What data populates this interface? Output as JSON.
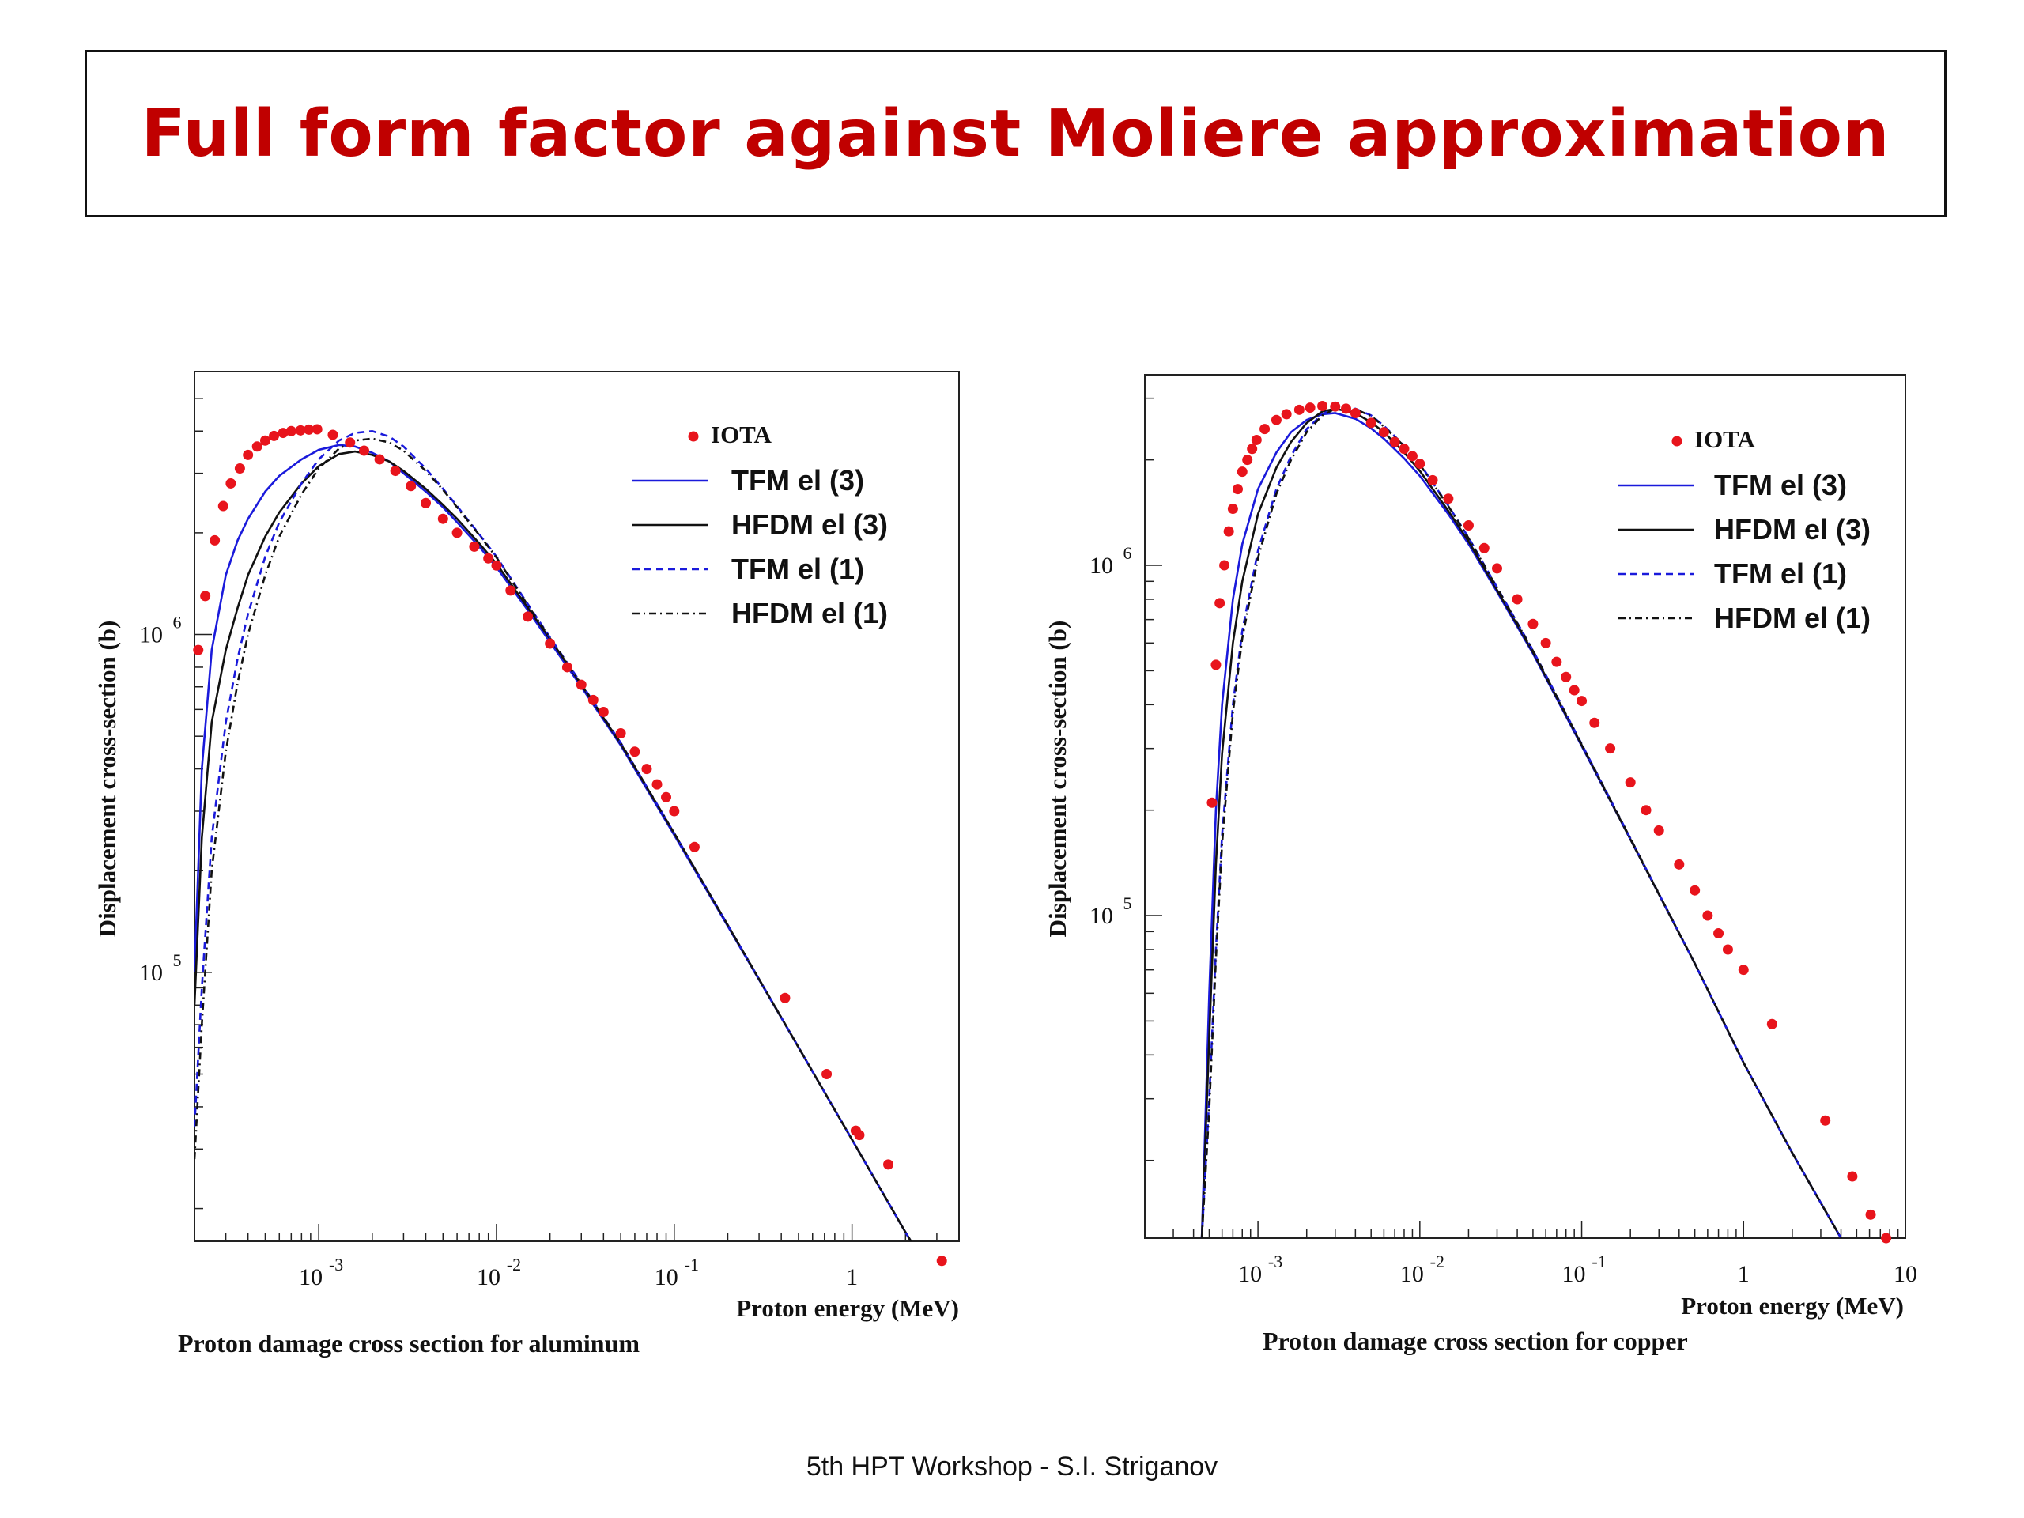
{
  "slide": {
    "title": "Full form factor against Moliere approximation",
    "title_color": "#c00000",
    "footer": "5th HPT Workshop  -  S.I. Striganov"
  },
  "chart_data": [
    {
      "type": "line",
      "caption": "Proton damage cross section for aluminum",
      "xlabel": "Proton energy (MeV)",
      "ylabel": "Displacement cross-section (b)",
      "xscale": "log",
      "yscale": "log",
      "xlim": [
        0.0002,
        4
      ],
      "ylim": [
        16000,
        6000000
      ],
      "x_ticks": [
        {
          "base": "10",
          "exp": "-3",
          "value": 0.001
        },
        {
          "base": "10",
          "exp": "-2",
          "value": 0.01
        },
        {
          "base": "10",
          "exp": "-1",
          "value": 0.1
        },
        {
          "base": "1",
          "exp": "",
          "value": 1
        }
      ],
      "y_ticks": [
        {
          "base": "10",
          "exp": "6",
          "value": 1000000
        },
        {
          "base": "10",
          "exp": "5",
          "value": 100000
        }
      ],
      "legend": {
        "placement": "top-right",
        "entries": [
          "IOTA",
          "TFM el (3)",
          "HFDM el (3)",
          "TFM el (1)",
          "HFDM el (1)"
        ]
      },
      "iota": {
        "name": "IOTA",
        "x": [
          0.00021,
          0.00023,
          0.00026,
          0.00029,
          0.00032,
          0.00036,
          0.0004,
          0.00045,
          0.0005,
          0.00056,
          0.00063,
          0.0007,
          0.00079,
          0.00088,
          0.00098,
          0.0012,
          0.0015,
          0.0018,
          0.0022,
          0.0027,
          0.0033,
          0.004,
          0.005,
          0.006,
          0.0075,
          0.009,
          0.01,
          0.012,
          0.015,
          0.02,
          0.025,
          0.03,
          0.035,
          0.04,
          0.05,
          0.06,
          0.07,
          0.08,
          0.09,
          0.1,
          0.13,
          0.42,
          0.72,
          1.05,
          1.1,
          1.6,
          3.2
        ],
        "y": [
          900000,
          1300000,
          1900000,
          2400000,
          2800000,
          3100000,
          3400000,
          3600000,
          3750000,
          3870000,
          3950000,
          4000000,
          4020000,
          4040000,
          4050000,
          3900000,
          3700000,
          3500000,
          3300000,
          3050000,
          2750000,
          2450000,
          2200000,
          2000000,
          1820000,
          1680000,
          1600000,
          1350000,
          1130000,
          940000,
          800000,
          710000,
          640000,
          590000,
          510000,
          450000,
          400000,
          360000,
          330000,
          300000,
          235000,
          84000,
          50000,
          34000,
          33000,
          27000,
          14000
        ]
      },
      "series": [
        {
          "name": "TFM el (3)",
          "color": "#1a1adb",
          "dash": "solid",
          "x": [
            0.0002,
            0.00022,
            0.00025,
            0.0003,
            0.00035,
            0.0004,
            0.0005,
            0.0006,
            0.0008,
            0.001,
            0.0013,
            0.0016,
            0.002,
            0.0025,
            0.003,
            0.004,
            0.005,
            0.006,
            0.008,
            0.01,
            0.015,
            0.02,
            0.03,
            0.05,
            0.1,
            0.2,
            0.5,
            1,
            2,
            3.5
          ],
          "y": [
            100000,
            400000,
            900000,
            1500000,
            1900000,
            2200000,
            2650000,
            2950000,
            3300000,
            3520000,
            3640000,
            3600000,
            3450000,
            3250000,
            3000000,
            2650000,
            2380000,
            2150000,
            1820000,
            1580000,
            1180000,
            950000,
            700000,
            470000,
            255000,
            137000,
            60000,
            32000,
            17000,
            10500
          ]
        },
        {
          "name": "HFDM el (3)",
          "color": "#111111",
          "dash": "solid",
          "x": [
            0.0002,
            0.00022,
            0.00025,
            0.0003,
            0.00035,
            0.0004,
            0.0005,
            0.0006,
            0.0008,
            0.001,
            0.0013,
            0.0016,
            0.002,
            0.0025,
            0.003,
            0.004,
            0.005,
            0.006,
            0.008,
            0.01,
            0.015,
            0.02,
            0.03,
            0.05,
            0.1,
            0.2,
            0.5,
            1,
            2,
            3.5
          ],
          "y": [
            80000,
            250000,
            550000,
            900000,
            1200000,
            1500000,
            1950000,
            2300000,
            2800000,
            3150000,
            3420000,
            3480000,
            3400000,
            3250000,
            3050000,
            2700000,
            2420000,
            2200000,
            1860000,
            1620000,
            1200000,
            970000,
            710000,
            475000,
            258000,
            138000,
            60000,
            32000,
            17000,
            10500
          ]
        },
        {
          "name": "TFM el (1)",
          "color": "#1a1adb",
          "dash": "dashed",
          "x": [
            0.0002,
            0.00022,
            0.00025,
            0.0003,
            0.00035,
            0.0004,
            0.0005,
            0.0006,
            0.0008,
            0.001,
            0.0013,
            0.0016,
            0.002,
            0.0025,
            0.003,
            0.004,
            0.005,
            0.006,
            0.008,
            0.01,
            0.015,
            0.02,
            0.03,
            0.05,
            0.1,
            0.2,
            0.5,
            1,
            2,
            3.5
          ],
          "y": [
            35000,
            90000,
            250000,
            550000,
            850000,
            1150000,
            1700000,
            2150000,
            2800000,
            3300000,
            3750000,
            3950000,
            4000000,
            3850000,
            3600000,
            3100000,
            2700000,
            2400000,
            1980000,
            1700000,
            1230000,
            980000,
            715000,
            478000,
            258000,
            138000,
            60000,
            32000,
            17000,
            10500
          ]
        },
        {
          "name": "HFDM el (1)",
          "color": "#111111",
          "dash": "dashdot",
          "x": [
            0.0002,
            0.00022,
            0.00025,
            0.0003,
            0.00035,
            0.0004,
            0.0005,
            0.0006,
            0.0008,
            0.001,
            0.0013,
            0.0016,
            0.002,
            0.0025,
            0.003,
            0.004,
            0.005,
            0.006,
            0.008,
            0.01,
            0.015,
            0.02,
            0.03,
            0.05,
            0.1,
            0.2,
            0.5,
            1,
            2,
            3.5
          ],
          "y": [
            28000,
            70000,
            200000,
            450000,
            720000,
            1000000,
            1500000,
            1950000,
            2600000,
            3100000,
            3550000,
            3750000,
            3800000,
            3700000,
            3500000,
            3050000,
            2680000,
            2380000,
            1970000,
            1690000,
            1220000,
            975000,
            712000,
            477000,
            258000,
            138000,
            60000,
            32000,
            17000,
            10500
          ]
        }
      ]
    },
    {
      "type": "line",
      "caption": "Proton damage cross section for copper",
      "xlabel": "Proton energy (MeV)",
      "ylabel": "Displacement cross-section (b)",
      "xscale": "log",
      "yscale": "log",
      "xlim": [
        0.0002,
        10
      ],
      "ylim": [
        12000,
        3500000
      ],
      "x_ticks": [
        {
          "base": "10",
          "exp": "-3",
          "value": 0.001
        },
        {
          "base": "10",
          "exp": "-2",
          "value": 0.01
        },
        {
          "base": "10",
          "exp": "-1",
          "value": 0.1
        },
        {
          "base": "1",
          "exp": "",
          "value": 1
        },
        {
          "base": "10",
          "exp": "",
          "value": 10
        }
      ],
      "y_ticks": [
        {
          "base": "10",
          "exp": "6",
          "value": 1000000
        },
        {
          "base": "10",
          "exp": "5",
          "value": 100000
        }
      ],
      "legend": {
        "placement": "top-right",
        "entries": [
          "IOTA",
          "TFM el (3)",
          "HFDM el (3)",
          "TFM el (1)",
          "HFDM el (1)"
        ]
      },
      "iota": {
        "name": "IOTA",
        "x": [
          0.00052,
          0.00055,
          0.00058,
          0.00062,
          0.00066,
          0.0007,
          0.00075,
          0.0008,
          0.00086,
          0.00092,
          0.00098,
          0.0011,
          0.0013,
          0.0015,
          0.0018,
          0.0021,
          0.0025,
          0.003,
          0.0035,
          0.004,
          0.005,
          0.006,
          0.007,
          0.008,
          0.009,
          0.01,
          0.012,
          0.015,
          0.02,
          0.025,
          0.03,
          0.04,
          0.05,
          0.06,
          0.07,
          0.08,
          0.09,
          0.1,
          0.12,
          0.15,
          0.2,
          0.25,
          0.3,
          0.4,
          0.5,
          0.6,
          0.7,
          0.8,
          1.0,
          1.5,
          3.2,
          4.7,
          6.1,
          7.6
        ],
        "y": [
          210000,
          520000,
          780000,
          1000000,
          1250000,
          1450000,
          1650000,
          1850000,
          2000000,
          2150000,
          2280000,
          2450000,
          2600000,
          2700000,
          2780000,
          2820000,
          2850000,
          2840000,
          2800000,
          2720000,
          2550000,
          2400000,
          2250000,
          2150000,
          2050000,
          1950000,
          1750000,
          1550000,
          1300000,
          1120000,
          980000,
          800000,
          680000,
          600000,
          530000,
          480000,
          440000,
          410000,
          355000,
          300000,
          240000,
          200000,
          175000,
          140000,
          118000,
          100000,
          89000,
          80000,
          70000,
          49000,
          26000,
          18000,
          14000,
          12000
        ]
      },
      "series": [
        {
          "name": "TFM el (3)",
          "color": "#1a1adb",
          "dash": "solid",
          "x": [
            0.00045,
            0.0005,
            0.00055,
            0.0006,
            0.0007,
            0.0008,
            0.001,
            0.0013,
            0.0016,
            0.002,
            0.0025,
            0.003,
            0.004,
            0.005,
            0.006,
            0.008,
            0.01,
            0.015,
            0.02,
            0.03,
            0.05,
            0.1,
            0.2,
            0.5,
            1,
            2,
            4,
            7
          ],
          "y": [
            12000,
            60000,
            200000,
            400000,
            800000,
            1150000,
            1650000,
            2100000,
            2400000,
            2600000,
            2700000,
            2720000,
            2620000,
            2460000,
            2300000,
            2020000,
            1800000,
            1400000,
            1150000,
            840000,
            560000,
            305000,
            165000,
            73000,
            38000,
            21000,
            12000,
            7800
          ]
        },
        {
          "name": "HFDM el (3)",
          "color": "#111111",
          "dash": "solid",
          "x": [
            0.00045,
            0.0005,
            0.00055,
            0.0006,
            0.0007,
            0.0008,
            0.001,
            0.0013,
            0.0016,
            0.002,
            0.0025,
            0.003,
            0.004,
            0.005,
            0.006,
            0.008,
            0.01,
            0.015,
            0.02,
            0.03,
            0.05,
            0.1,
            0.2,
            0.5,
            1,
            2,
            4,
            7
          ],
          "y": [
            12000,
            45000,
            140000,
            290000,
            600000,
            900000,
            1400000,
            1900000,
            2250000,
            2550000,
            2750000,
            2800000,
            2720000,
            2560000,
            2400000,
            2100000,
            1860000,
            1430000,
            1170000,
            850000,
            565000,
            307000,
            165000,
            73000,
            38000,
            21000,
            12000,
            7800
          ]
        },
        {
          "name": "TFM el (1)",
          "color": "#1a1adb",
          "dash": "dashed",
          "x": [
            0.00045,
            0.0005,
            0.00055,
            0.0006,
            0.0007,
            0.0008,
            0.001,
            0.0013,
            0.0016,
            0.002,
            0.0025,
            0.003,
            0.004,
            0.005,
            0.006,
            0.008,
            0.01,
            0.015,
            0.02,
            0.03,
            0.05,
            0.1,
            0.2,
            0.5,
            1,
            2,
            4,
            7
          ],
          "y": [
            12000,
            30000,
            80000,
            170000,
            400000,
            650000,
            1100000,
            1650000,
            2050000,
            2450000,
            2700000,
            2820000,
            2800000,
            2680000,
            2500000,
            2200000,
            1950000,
            1480000,
            1200000,
            865000,
            572000,
            309000,
            166000,
            73000,
            38000,
            21000,
            12000,
            7800
          ]
        },
        {
          "name": "HFDM el (1)",
          "color": "#111111",
          "dash": "dashdot",
          "x": [
            0.00045,
            0.0005,
            0.00055,
            0.0006,
            0.0007,
            0.0008,
            0.001,
            0.0013,
            0.0016,
            0.002,
            0.0025,
            0.003,
            0.004,
            0.005,
            0.006,
            0.008,
            0.01,
            0.015,
            0.02,
            0.03,
            0.05,
            0.1,
            0.2,
            0.5,
            1,
            2,
            4,
            7
          ],
          "y": [
            12000,
            28000,
            75000,
            160000,
            380000,
            620000,
            1050000,
            1600000,
            2000000,
            2400000,
            2680000,
            2800000,
            2790000,
            2670000,
            2490000,
            2190000,
            1940000,
            1475000,
            1195000,
            862000,
            570000,
            308000,
            166000,
            73000,
            38000,
            21000,
            12000,
            7800
          ]
        }
      ]
    }
  ]
}
